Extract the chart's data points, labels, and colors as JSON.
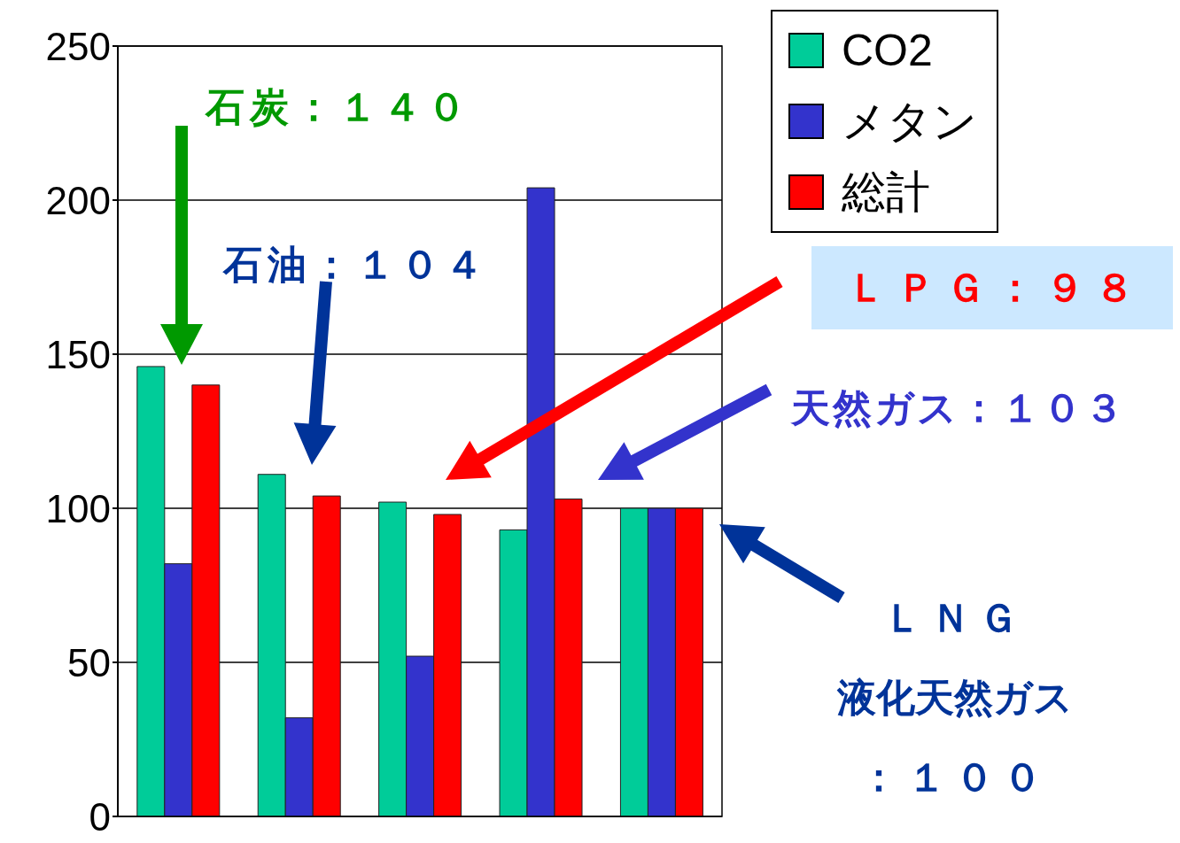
{
  "chart_data": {
    "type": "bar",
    "categories": [
      null,
      null,
      null,
      null,
      null
    ],
    "series": [
      {
        "name": "CO2",
        "color": "#00cc99",
        "values": [
          146,
          111,
          102,
          93,
          100
        ]
      },
      {
        "name": "メタン",
        "color": "#3333cc",
        "values": [
          82,
          32,
          52,
          204,
          100
        ]
      },
      {
        "name": "総計",
        "color": "#ff0000",
        "values": [
          140,
          104,
          98,
          103,
          100
        ]
      }
    ],
    "ylim": [
      0,
      250
    ],
    "yticks": [
      0,
      50,
      100,
      150,
      200,
      250
    ],
    "grid": "y",
    "legend": "top right",
    "annotations": [
      "石炭：１４０",
      "石油：１０４",
      "ＬＰＧ：９８",
      "天然ガス：１０３",
      "ＬＮＧ",
      "液化天然ガス",
      "：１００"
    ]
  }
}
